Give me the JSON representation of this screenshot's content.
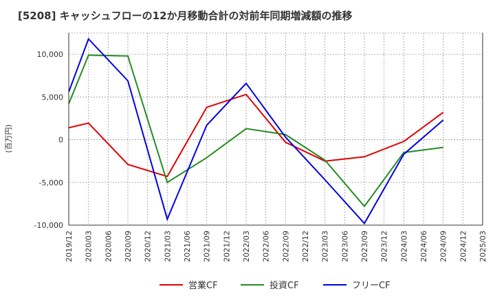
{
  "chart_data": {
    "type": "line",
    "title": "[5208]  キャッシュフローの12か月移動合計の対前年同期増減額の推移",
    "ylabel": "(百万円)",
    "xlabel": "",
    "ylim": [
      -10000,
      12500
    ],
    "yticks": [
      10000,
      5000,
      0,
      -5000,
      -10000
    ],
    "ytick_labels": [
      "10,000",
      "5,000",
      "0",
      "-5,000",
      "-10,000"
    ],
    "x_categories": [
      "2019/12",
      "2020/03",
      "2020/06",
      "2020/09",
      "2020/12",
      "2021/03",
      "2021/06",
      "2021/09",
      "2021/12",
      "2022/03",
      "2022/06",
      "2022/09",
      "2022/12",
      "2023/03",
      "2023/06",
      "2023/09",
      "2023/12",
      "2024/03",
      "2024/06",
      "2024/09",
      "2024/12",
      "2025/03"
    ],
    "grid": true,
    "legend_position": "bottom",
    "series": [
      {
        "name": "営業CF",
        "color": "#e00000",
        "values": [
          1400,
          1950,
          null,
          -2900,
          null,
          -4300,
          null,
          3800,
          null,
          5300,
          null,
          -300,
          null,
          -2500,
          null,
          -2000,
          null,
          -200,
          null,
          3200,
          null,
          null
        ]
      },
      {
        "name": "投資CF",
        "color": "#228b22",
        "values": [
          4200,
          9900,
          null,
          9800,
          null,
          -5000,
          null,
          -2100,
          null,
          1300,
          null,
          600,
          null,
          -2400,
          null,
          -7800,
          null,
          -1500,
          null,
          -900,
          null,
          null
        ]
      },
      {
        "name": "フリーCF",
        "color": "#0000e0",
        "values": [
          5600,
          11800,
          null,
          6900,
          null,
          -9300,
          null,
          1700,
          null,
          6600,
          null,
          300,
          null,
          -4700,
          null,
          -9800,
          null,
          -1700,
          null,
          2300,
          null,
          null
        ]
      }
    ]
  }
}
